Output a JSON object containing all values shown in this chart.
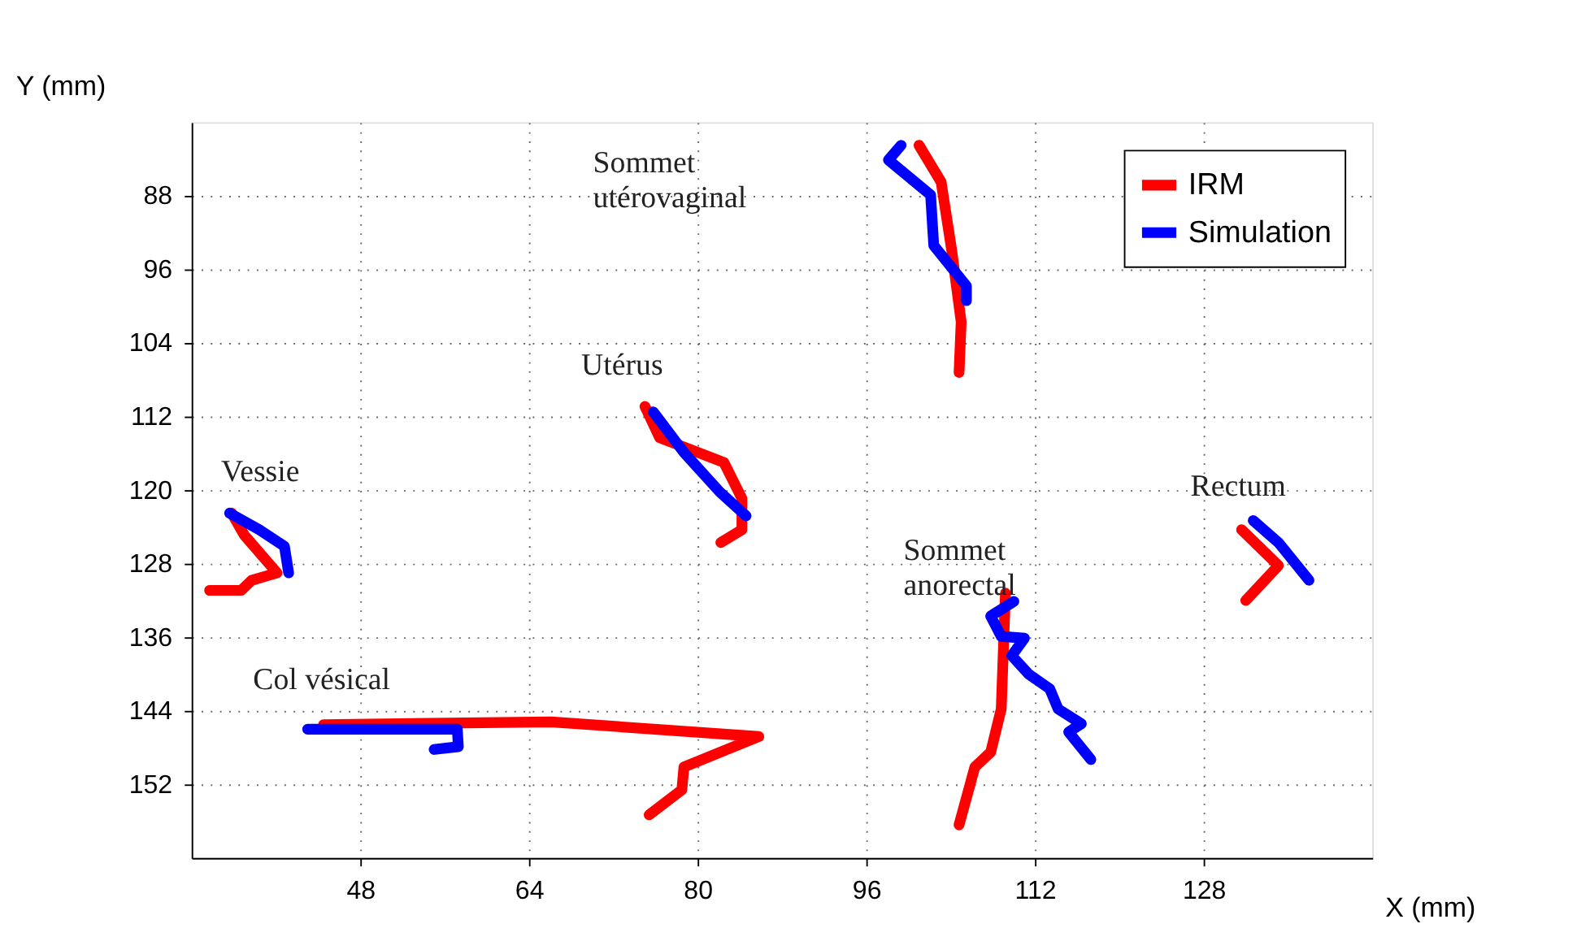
{
  "chart_data": {
    "type": "line",
    "xlabel": "X (mm)",
    "ylabel": "Y (mm)",
    "xlim": [
      32,
      144
    ],
    "xticks": [
      48,
      64,
      80,
      96,
      112,
      128
    ],
    "ylim": [
      160,
      80
    ],
    "yticks": [
      88,
      96,
      104,
      112,
      120,
      128,
      136,
      144,
      152
    ],
    "grid": true,
    "legend": "top right",
    "marker": "none",
    "line_style": "solid",
    "series": [
      {
        "name": "IRM",
        "color": "#ff0000",
        "x": [
          33.7,
          36.7,
          37.7,
          40.1,
          37.0,
          35.8,
          null,
          44.5,
          66.1,
          85.8,
          78.7,
          78.5,
          75.4,
          null,
          75.0,
          76.4,
          82.5,
          84.2,
          84.2,
          82.2,
          null,
          101.0,
          103.1,
          104.1,
          105.0,
          104.8,
          null,
          109.2,
          108.8,
          107.8,
          106.3,
          104.8,
          null,
          131.6,
          135.1,
          132.0
        ],
        "values": [
          130.9,
          130.9,
          129.8,
          129.0,
          124.9,
          122.5,
          null,
          145.5,
          145.2,
          146.8,
          150.1,
          152.6,
          155.3,
          null,
          110.9,
          114.3,
          117.0,
          120.9,
          124.3,
          125.7,
          null,
          82.5,
          86.5,
          93.9,
          101.7,
          107.2,
          null,
          131.2,
          143.8,
          148.5,
          150.1,
          156.4,
          null,
          124.3,
          128.2,
          132.0
        ]
      },
      {
        "name": "Simulation",
        "color": "#0000ff",
        "x": [
          35.6,
          38.4,
          40.8,
          41.2,
          null,
          43.0,
          57.2,
          57.3,
          55.0,
          null,
          75.8,
          78.7,
          82.1,
          84.6,
          null,
          99.3,
          98.1,
          102.1,
          102.4,
          105.5,
          105.5,
          null,
          110.0,
          107.8,
          108.8,
          111.0,
          109.8,
          111.4,
          113.4,
          114.2,
          116.4,
          115.2,
          117.3,
          null,
          132.7,
          135.1,
          138.0
        ],
        "values": [
          122.5,
          124.3,
          126.1,
          129.0,
          null,
          146.0,
          146.0,
          147.9,
          148.2,
          null,
          111.5,
          115.9,
          120.2,
          122.8,
          null,
          82.5,
          84.1,
          87.9,
          93.4,
          97.8,
          99.4,
          null,
          132.1,
          133.7,
          135.9,
          136.1,
          138.0,
          140.0,
          141.6,
          143.8,
          145.4,
          146.3,
          149.3,
          null,
          123.3,
          125.7,
          129.8
        ]
      }
    ],
    "annotations": [
      "Sommet\nutérovaginal",
      "Utérus",
      "Vessie",
      "Col vésical",
      "Sommet\nanorectal",
      "Rectum"
    ]
  }
}
